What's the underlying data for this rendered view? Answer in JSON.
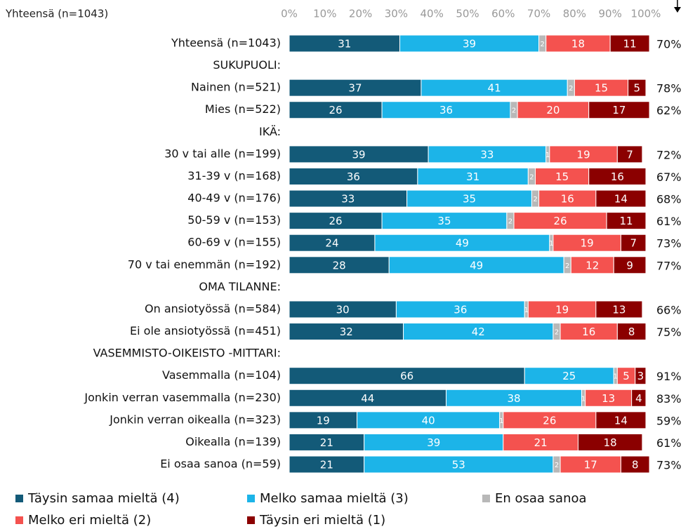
{
  "chart_data": {
    "type": "stacked-bar-horizontal",
    "subtitle": "Yhteensä (n=1043)",
    "categories": [
      "Yhteensä (n=1043)",
      "SUKUPUOLI:",
      "Nainen (n=521)",
      "Mies (n=522)",
      "IKÄ:",
      "30 v tai alle (n=199)",
      "31-39 v (n=168)",
      "40-49 v (n=176)",
      "50-59 v (n=153)",
      "60-69 v (n=155)",
      "70 v tai enemmän (n=192)",
      "OMA TILANNE:",
      "On ansiotyössä (n=584)",
      "Ei ole ansiotyössä (n=451)",
      "VASEMMISTO-OIKEISTO -MITTARI:",
      "Vasemmalla (n=104)",
      "Jonkin verran vasemmalla (n=230)",
      "Jonkin verran oikealla (n=323)",
      "Oikealla (n=139)",
      "Ei osaa sanoa (n=59)"
    ],
    "series": [
      {
        "name": "Täysin samaa mieltä (4)",
        "color": "#135a78",
        "values": [
          31,
          null,
          37,
          26,
          null,
          39,
          36,
          33,
          26,
          24,
          28,
          null,
          30,
          32,
          null,
          66,
          44,
          19,
          21,
          21
        ]
      },
      {
        "name": "Melko samaa mieltä (3)",
        "color": "#1cb4e8",
        "values": [
          39,
          null,
          41,
          36,
          null,
          33,
          31,
          35,
          35,
          49,
          49,
          null,
          36,
          42,
          null,
          25,
          38,
          40,
          39,
          53
        ]
      },
      {
        "name": "En osaa sanoa",
        "color": "#b8b8b8",
        "values": [
          2,
          null,
          2,
          2,
          null,
          1,
          2,
          2,
          2,
          1,
          2,
          null,
          1,
          2,
          null,
          1,
          1,
          1,
          null,
          2
        ]
      },
      {
        "name": "Melko eri mieltä (2)",
        "color": "#f4524f",
        "values": [
          18,
          null,
          15,
          20,
          null,
          19,
          15,
          16,
          26,
          19,
          12,
          null,
          19,
          16,
          null,
          5,
          13,
          26,
          21,
          17
        ]
      },
      {
        "name": "Täysin eri mieltä (1)",
        "color": "#8b0000",
        "values": [
          11,
          null,
          5,
          17,
          null,
          7,
          16,
          14,
          11,
          7,
          9,
          null,
          13,
          8,
          null,
          3,
          4,
          14,
          18,
          8
        ]
      }
    ],
    "totals": {
      "values": [
        70,
        null,
        78,
        62,
        null,
        72,
        67,
        68,
        61,
        73,
        77,
        null,
        66,
        75,
        null,
        91,
        83,
        59,
        61,
        73
      ],
      "value_labels": [
        "70%",
        null,
        "78%",
        "62%",
        null,
        "72%",
        "67%",
        "68%",
        "61%",
        "73%",
        "77%",
        null,
        "66%",
        "75%",
        null,
        "91%",
        "83%",
        "59%",
        "61%",
        "73%"
      ]
    },
    "xlim": [
      0,
      100
    ],
    "xticks": [
      {
        "value": 0,
        "label": "0%"
      },
      {
        "value": 10,
        "label": "10%"
      },
      {
        "value": 20,
        "label": "20%"
      },
      {
        "value": 30,
        "label": "30%"
      },
      {
        "value": 40,
        "label": "40%"
      },
      {
        "value": 50,
        "label": "50%"
      },
      {
        "value": 60,
        "label": "60%"
      },
      {
        "value": 70,
        "label": "70%"
      },
      {
        "value": 80,
        "label": "80%"
      },
      {
        "value": 90,
        "label": "90%"
      },
      {
        "value": 100,
        "label": "100%"
      }
    ],
    "legend": "bottom"
  }
}
